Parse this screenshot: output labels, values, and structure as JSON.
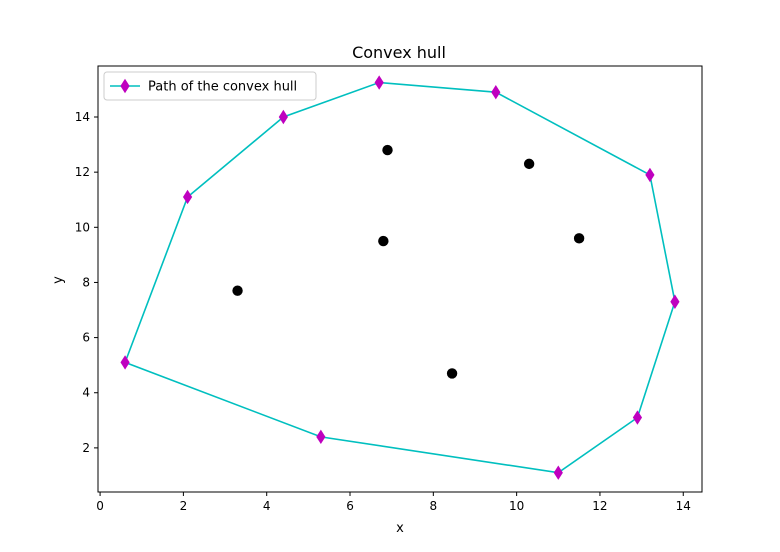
{
  "chart_data": {
    "type": "scatter",
    "title": "Convex hull",
    "xlabel": "x",
    "ylabel": "y",
    "xlim": [
      -0.05,
      14.45
    ],
    "ylim": [
      0.4,
      15.85
    ],
    "xticks": [
      0,
      2,
      4,
      6,
      8,
      10,
      12,
      14
    ],
    "yticks": [
      2,
      4,
      6,
      8,
      10,
      12,
      14
    ],
    "grid": false,
    "legend_position": "top-left",
    "colors": {
      "hull_line": "#00bfbf",
      "hull_marker": "#bf00bf",
      "points": "#000000"
    },
    "series": [
      {
        "name": "Path of the convex hull",
        "kind": "line-with-diamond-markers",
        "x": [
          0.6,
          5.3,
          11.0,
          12.9,
          13.8,
          13.2,
          9.5,
          6.7,
          4.4,
          2.1,
          0.6
        ],
        "y": [
          5.1,
          2.4,
          1.1,
          3.1,
          7.3,
          11.9,
          14.9,
          15.25,
          14.0,
          11.1,
          5.1
        ]
      },
      {
        "kind": "points",
        "x": [
          3.3,
          6.9,
          6.8,
          8.45,
          10.3,
          11.5
        ],
        "y": [
          7.7,
          12.8,
          9.5,
          4.7,
          12.3,
          9.6
        ]
      }
    ]
  }
}
